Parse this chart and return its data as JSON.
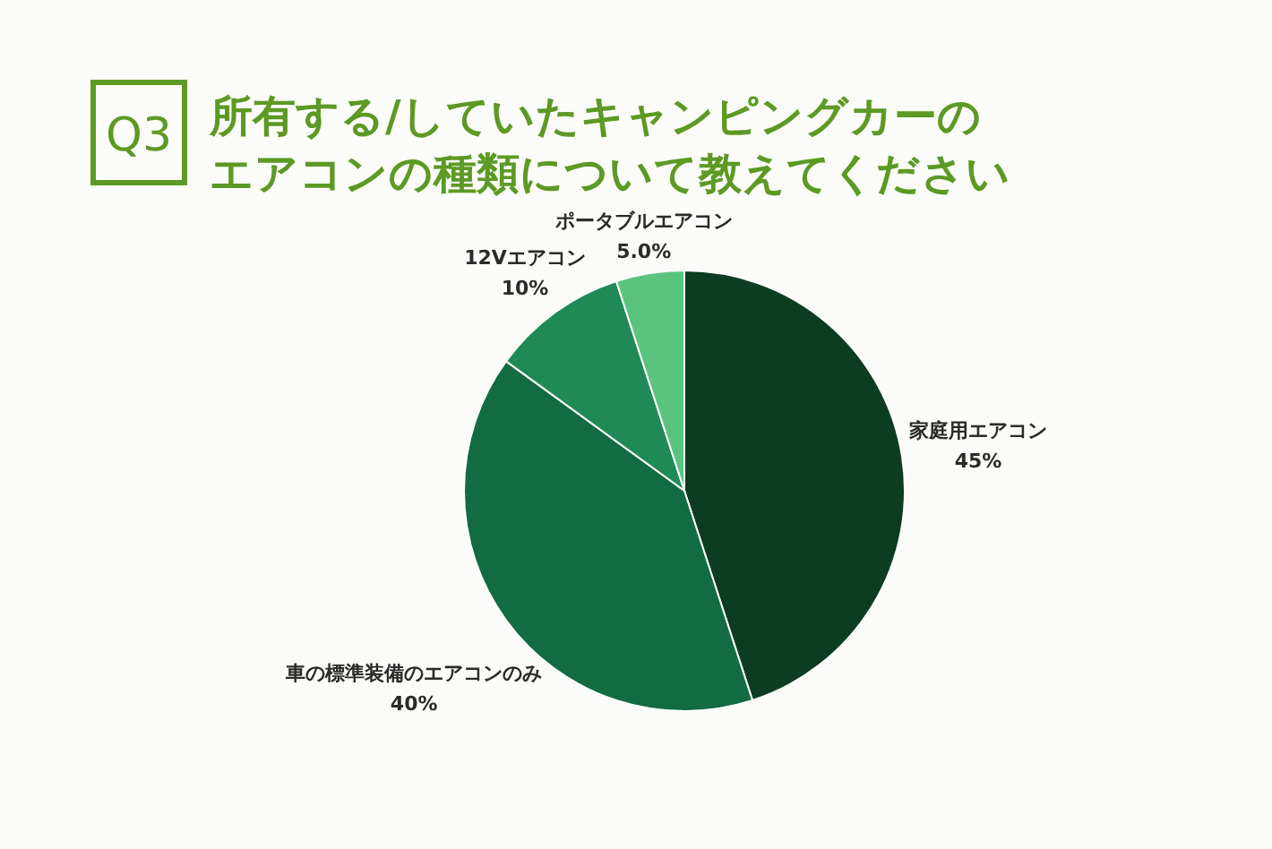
{
  "chart_data": {
    "type": "pie",
    "title": "所有する/していたキャンピングカーのエアコンの種類について教えてください",
    "annotations": [
      "Q3"
    ],
    "categories": [
      "家庭用エアコン",
      "車の標準装備のエアコンのみ",
      "12Vエアコン",
      "ポータブルエアコン"
    ],
    "values": [
      45,
      40,
      10,
      5.0
    ],
    "value_labels": [
      "45%",
      "40%",
      "10%",
      "5.0%"
    ],
    "colors": [
      "#0c3d22",
      "#126b42",
      "#1f8a56",
      "#5ac47e"
    ]
  }
}
